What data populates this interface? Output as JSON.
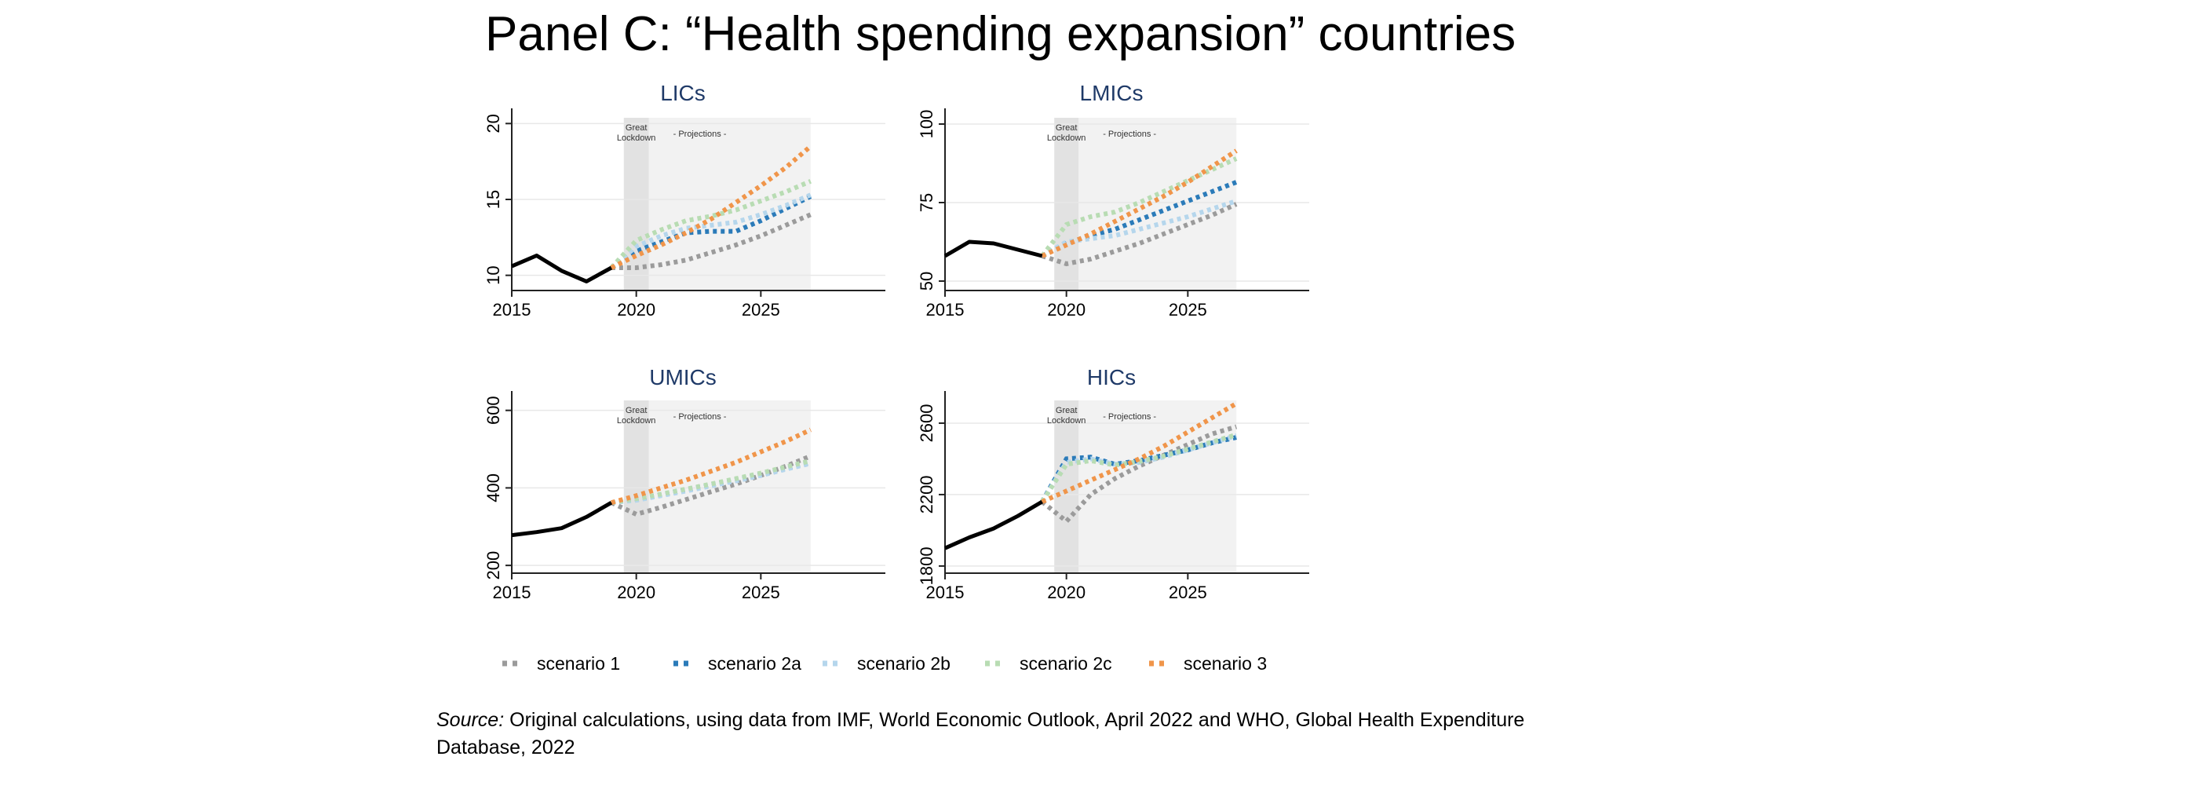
{
  "page_title": "Panel C: “Health spending expansion” countries",
  "source_label": "Source:",
  "source_text": "Original calculations, using data from IMF, World Economic Outlook, April 2022 and WHO, Global Health Expenditure Database, 2022",
  "shade_labels": {
    "lockdown_line1": "Great",
    "lockdown_line2": "Lockdown",
    "projections": "- Projections -"
  },
  "colors": {
    "historical": "#000000",
    "scenario 1": "#9b9b9b",
    "scenario 2a": "#2b7bb9",
    "scenario 2b": "#b5d6ec",
    "scenario 2c": "#b8dcb3",
    "scenario 3": "#f0954a",
    "lockdown_shade": "#e2e2e2",
    "projection_shade": "#f2f2f2"
  },
  "legend": [
    "scenario 1",
    "scenario 2a",
    "scenario 2b",
    "scenario 2c",
    "scenario 3"
  ],
  "chart_data": [
    {
      "type": "line",
      "title": "LICs",
      "xlim": [
        2015,
        2030
      ],
      "xticks": [
        2015,
        2020,
        2025
      ],
      "ylim": [
        9,
        21
      ],
      "yticks": [
        10,
        15,
        20
      ],
      "lockdown_span": [
        2019.5,
        2020.5
      ],
      "projection_span": [
        2020.5,
        2027
      ],
      "historical": {
        "x": [
          2015,
          2016,
          2017,
          2018,
          2019
        ],
        "y": [
          10.6,
          11.3,
          10.3,
          9.6,
          10.5
        ]
      },
      "series": [
        {
          "name": "scenario 1",
          "x": [
            2019,
            2020,
            2021,
            2022,
            2023,
            2024,
            2025,
            2026,
            2027
          ],
          "y": [
            10.5,
            10.5,
            10.7,
            11.0,
            11.5,
            12.0,
            12.6,
            13.3,
            14.0
          ]
        },
        {
          "name": "scenario 2a",
          "x": [
            2019,
            2020,
            2021,
            2022,
            2023,
            2024,
            2025,
            2026,
            2027
          ],
          "y": [
            10.5,
            11.6,
            12.2,
            12.8,
            12.9,
            12.9,
            13.6,
            14.4,
            15.2
          ]
        },
        {
          "name": "scenario 2b",
          "x": [
            2019,
            2020,
            2021,
            2022,
            2023,
            2024,
            2025,
            2026,
            2027
          ],
          "y": [
            10.5,
            11.9,
            12.6,
            13.1,
            13.3,
            13.5,
            14.0,
            14.6,
            15.3
          ]
        },
        {
          "name": "scenario 2c",
          "x": [
            2019,
            2020,
            2021,
            2022,
            2023,
            2024,
            2025,
            2026,
            2027
          ],
          "y": [
            10.5,
            12.3,
            13.0,
            13.6,
            13.9,
            14.3,
            14.9,
            15.5,
            16.2
          ]
        },
        {
          "name": "scenario 3",
          "x": [
            2019,
            2020,
            2021,
            2022,
            2023,
            2024,
            2025,
            2026,
            2027
          ],
          "y": [
            10.5,
            11.3,
            12.0,
            12.8,
            13.7,
            14.8,
            15.9,
            17.1,
            18.5
          ]
        }
      ]
    },
    {
      "type": "line",
      "title": "LMICs",
      "xlim": [
        2015,
        2030
      ],
      "xticks": [
        2015,
        2020,
        2025
      ],
      "ylim": [
        47,
        105
      ],
      "yticks": [
        50,
        75,
        100
      ],
      "lockdown_span": [
        2019.5,
        2020.5
      ],
      "projection_span": [
        2020.5,
        2027
      ],
      "historical": {
        "x": [
          2015,
          2016,
          2017,
          2018,
          2019
        ],
        "y": [
          58.0,
          62.5,
          62.0,
          60.0,
          58.0
        ]
      },
      "series": [
        {
          "name": "scenario 1",
          "x": [
            2019,
            2020,
            2021,
            2022,
            2023,
            2024,
            2025,
            2026,
            2027
          ],
          "y": [
            58.0,
            55.5,
            57.0,
            59.5,
            62.0,
            65.0,
            68.0,
            71.0,
            74.5
          ]
        },
        {
          "name": "scenario 2a",
          "x": [
            2019,
            2020,
            2021,
            2022,
            2023,
            2024,
            2025,
            2026,
            2027
          ],
          "y": [
            58.0,
            62.0,
            64.5,
            66.5,
            69.5,
            72.5,
            75.5,
            78.5,
            81.5
          ]
        },
        {
          "name": "scenario 2b",
          "x": [
            2019,
            2020,
            2021,
            2022,
            2023,
            2024,
            2025,
            2026,
            2027
          ],
          "y": [
            58.0,
            62.5,
            63.5,
            64.5,
            66.5,
            68.5,
            70.5,
            73.0,
            75.5
          ]
        },
        {
          "name": "scenario 2c",
          "x": [
            2019,
            2020,
            2021,
            2022,
            2023,
            2024,
            2025,
            2026,
            2027
          ],
          "y": [
            58.0,
            68.0,
            70.5,
            72.0,
            75.0,
            78.5,
            82.0,
            85.5,
            89.0
          ]
        },
        {
          "name": "scenario 3",
          "x": [
            2019,
            2020,
            2021,
            2022,
            2023,
            2024,
            2025,
            2026,
            2027
          ],
          "y": [
            58.0,
            61.5,
            65.0,
            69.0,
            73.0,
            77.0,
            81.5,
            86.5,
            91.5
          ]
        }
      ]
    },
    {
      "type": "line",
      "title": "UMICs",
      "xlim": [
        2015,
        2030
      ],
      "xticks": [
        2015,
        2020,
        2025
      ],
      "ylim": [
        180,
        650
      ],
      "yticks": [
        200,
        400,
        600
      ],
      "lockdown_span": [
        2019.5,
        2020.5
      ],
      "projection_span": [
        2020.5,
        2027
      ],
      "historical": {
        "x": [
          2015,
          2016,
          2017,
          2018,
          2019
        ],
        "y": [
          278,
          286,
          296,
          325,
          362
        ]
      },
      "series": [
        {
          "name": "scenario 1",
          "x": [
            2019,
            2020,
            2021,
            2022,
            2023,
            2024,
            2025,
            2026,
            2027
          ],
          "y": [
            362,
            332,
            350,
            370,
            390,
            410,
            432,
            456,
            482
          ]
        },
        {
          "name": "scenario 2a",
          "x": [
            2019,
            2020,
            2021,
            2022,
            2023,
            2024,
            2025,
            2026,
            2027
          ],
          "y": [
            362,
            370,
            382,
            395,
            408,
            420,
            435,
            450,
            465
          ]
        },
        {
          "name": "scenario 2b",
          "x": [
            2019,
            2020,
            2021,
            2022,
            2023,
            2024,
            2025,
            2026,
            2027
          ],
          "y": [
            362,
            368,
            380,
            392,
            405,
            418,
            432,
            448,
            463
          ]
        },
        {
          "name": "scenario 2c",
          "x": [
            2019,
            2020,
            2021,
            2022,
            2023,
            2024,
            2025,
            2026,
            2027
          ],
          "y": [
            362,
            372,
            384,
            397,
            410,
            424,
            438,
            454,
            470
          ]
        },
        {
          "name": "scenario 3",
          "x": [
            2019,
            2020,
            2021,
            2022,
            2023,
            2024,
            2025,
            2026,
            2027
          ],
          "y": [
            362,
            380,
            400,
            420,
            443,
            466,
            493,
            520,
            550
          ]
        }
      ]
    },
    {
      "type": "line",
      "title": "HICs",
      "xlim": [
        2015,
        2030
      ],
      "xticks": [
        2015,
        2020,
        2025
      ],
      "ylim": [
        1760,
        2780
      ],
      "yticks": [
        1800,
        2200,
        2600
      ],
      "lockdown_span": [
        2019.5,
        2020.5
      ],
      "projection_span": [
        2020.5,
        2027
      ],
      "historical": {
        "x": [
          2015,
          2016,
          2017,
          2018,
          2019
        ],
        "y": [
          1900,
          1960,
          2010,
          2080,
          2160
        ]
      },
      "series": [
        {
          "name": "scenario 1",
          "x": [
            2019,
            2020,
            2021,
            2022,
            2023,
            2024,
            2025,
            2026,
            2027
          ],
          "y": [
            2160,
            2050,
            2200,
            2290,
            2360,
            2420,
            2480,
            2540,
            2580
          ]
        },
        {
          "name": "scenario 2a",
          "x": [
            2019,
            2020,
            2021,
            2022,
            2023,
            2024,
            2025,
            2026,
            2027
          ],
          "y": [
            2160,
            2400,
            2410,
            2370,
            2390,
            2420,
            2450,
            2490,
            2520
          ]
        },
        {
          "name": "scenario 2b",
          "x": [
            2019,
            2020,
            2021,
            2022,
            2023,
            2024,
            2025,
            2026,
            2027
          ],
          "y": [
            2160,
            2380,
            2400,
            2370,
            2380,
            2410,
            2450,
            2490,
            2530
          ]
        },
        {
          "name": "scenario 2c",
          "x": [
            2019,
            2020,
            2021,
            2022,
            2023,
            2024,
            2025,
            2026,
            2027
          ],
          "y": [
            2160,
            2370,
            2390,
            2365,
            2385,
            2415,
            2455,
            2495,
            2535
          ]
        },
        {
          "name": "scenario 3",
          "x": [
            2019,
            2020,
            2021,
            2022,
            2023,
            2024,
            2025,
            2026,
            2027
          ],
          "y": [
            2160,
            2220,
            2280,
            2340,
            2400,
            2470,
            2550,
            2630,
            2710
          ]
        }
      ]
    }
  ]
}
